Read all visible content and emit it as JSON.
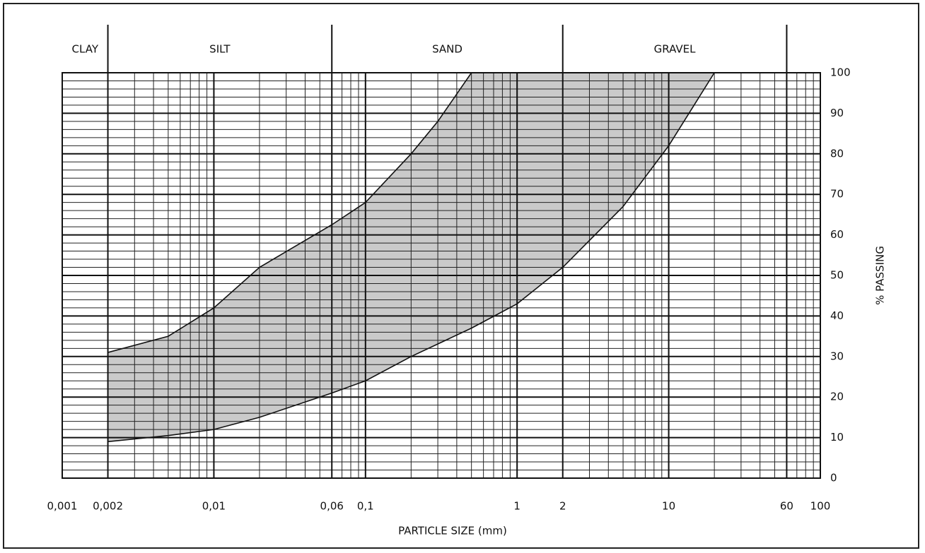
{
  "chart_data": {
    "type": "envelope",
    "xlabel": "PARTICLE SIZE (mm)",
    "ylabel": "% PASSING",
    "xscale": "log",
    "xlim": [
      0.001,
      100
    ],
    "ylim": [
      0,
      100
    ],
    "xticks": [
      {
        "value": 0.001,
        "label": "0,001"
      },
      {
        "value": 0.002,
        "label": "0,002"
      },
      {
        "value": 0.01,
        "label": "0,01"
      },
      {
        "value": 0.06,
        "label": "0,06"
      },
      {
        "value": 0.1,
        "label": "0,1"
      },
      1,
      2,
      10,
      60,
      100
    ],
    "yticks": [
      0,
      10,
      20,
      30,
      40,
      50,
      60,
      70,
      80,
      90,
      100
    ],
    "grid": true,
    "zones": [
      {
        "name": "CLAY",
        "from": 0.001,
        "to": 0.002
      },
      {
        "name": "SILT",
        "from": 0.002,
        "to": 0.06
      },
      {
        "name": "SAND",
        "from": 0.06,
        "to": 2
      },
      {
        "name": "GRAVEL",
        "from": 2,
        "to": 60
      }
    ],
    "shade_color": "#b8b8b8",
    "series": [
      {
        "x": [
          0.002,
          0.005,
          0.01,
          0.02,
          0.06,
          0.1,
          0.2,
          0.3,
          0.5
        ],
        "values": [
          31,
          35,
          42,
          52,
          62.5,
          68,
          80,
          88,
          100
        ],
        "color": "#111111"
      },
      {
        "x": [
          0.002,
          0.005,
          0.01,
          0.02,
          0.06,
          0.1,
          0.2,
          0.5,
          1,
          2,
          5,
          10,
          20
        ],
        "values": [
          9,
          10.5,
          12,
          15,
          21,
          24,
          30,
          37,
          43,
          52,
          67,
          82,
          100
        ],
        "color": "#111111"
      }
    ]
  }
}
